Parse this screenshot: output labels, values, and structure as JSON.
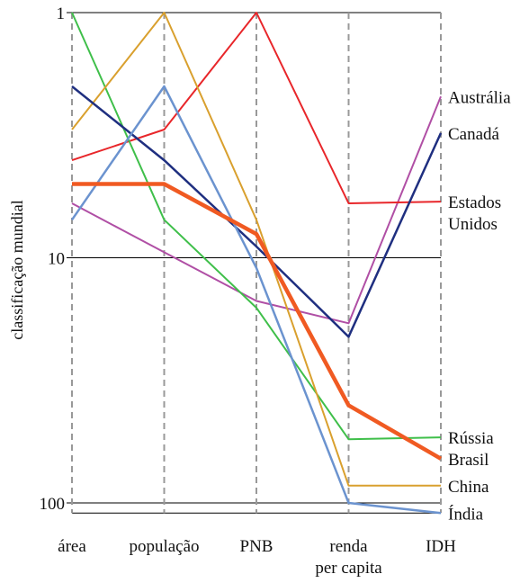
{
  "chart_data": {
    "type": "line",
    "ylabel": "classificação mundial",
    "yscale": "log",
    "yinverted": true,
    "ylim": [
      1,
      110
    ],
    "yticks": [
      {
        "value": 1,
        "label": "1"
      },
      {
        "value": 10,
        "label": "10"
      },
      {
        "value": 100,
        "label": "100"
      }
    ],
    "grid": "horizontal lines at 1, 10, 100; dashed vertical axes at each category",
    "categories": [
      {
        "lines": [
          "área"
        ]
      },
      {
        "lines": [
          "população"
        ]
      },
      {
        "lines": [
          "PNB"
        ]
      },
      {
        "lines": [
          "renda",
          "per capita"
        ]
      },
      {
        "lines": [
          "IDH"
        ]
      }
    ],
    "series": [
      {
        "name": "Austrália",
        "label_lines": [
          "Austrália"
        ],
        "color": "#b04fa5",
        "width": 2,
        "values": [
          6,
          9.5,
          15,
          18.5,
          2.2
        ]
      },
      {
        "name": "Canadá",
        "label_lines": [
          "Canadá"
        ],
        "color": "#1f2f80",
        "width": 2.5,
        "values": [
          2,
          4,
          9,
          21,
          3.1
        ]
      },
      {
        "name": "Estados Unidos",
        "label_lines": [
          "Estados",
          "Unidos"
        ],
        "color": "#e8262a",
        "width": 2,
        "values": [
          4,
          3,
          1,
          6,
          5.9
        ]
      },
      {
        "name": "Rússia",
        "label_lines": [
          "Rússia"
        ],
        "color": "#3fbf4a",
        "width": 2,
        "values": [
          1,
          7,
          16,
          55,
          54
        ]
      },
      {
        "name": "Brasil",
        "label_lines": [
          "Brasil"
        ],
        "color": "#f05a22",
        "width": 4.5,
        "values": [
          5,
          5,
          8,
          40,
          66
        ]
      },
      {
        "name": "China",
        "label_lines": [
          "China"
        ],
        "color": "#d9a02e",
        "width": 2,
        "values": [
          3,
          1,
          7,
          85,
          85
        ]
      },
      {
        "name": "Índia",
        "label_lines": [
          "Índia"
        ],
        "color": "#6b93cf",
        "width": 2.5,
        "values": [
          7,
          2,
          11,
          100,
          110
        ]
      }
    ]
  }
}
